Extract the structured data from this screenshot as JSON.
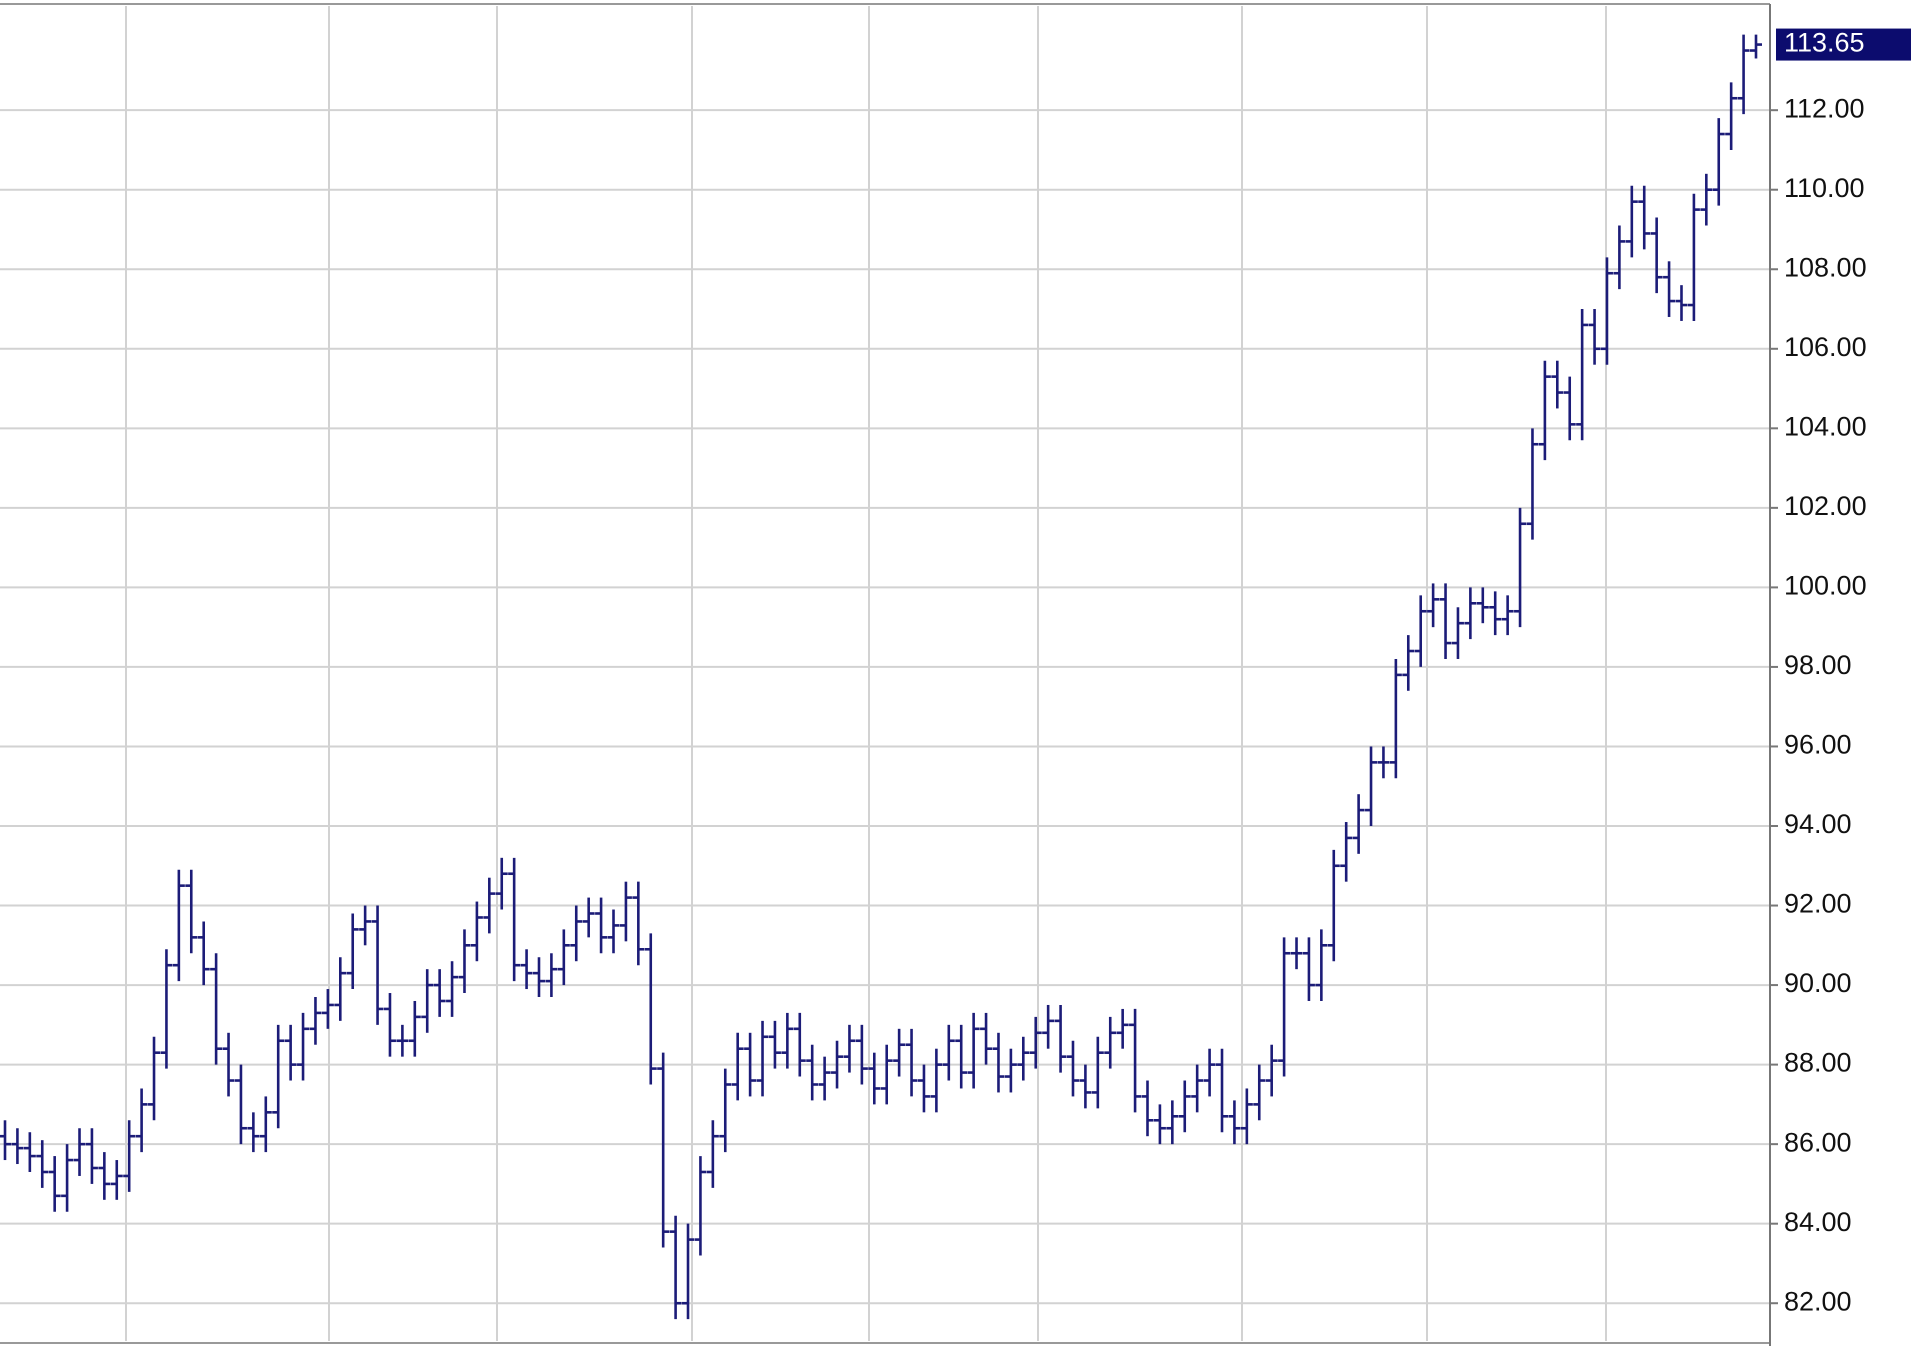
{
  "chart_data": {
    "type": "ohlc",
    "color": "#1c1c78",
    "grid": true,
    "ylim": [
      81.05,
      114.67
    ],
    "yticks": [
      {
        "value": 82,
        "label": "82.00"
      },
      {
        "value": 84,
        "label": "84.00"
      },
      {
        "value": 86,
        "label": "86.00"
      },
      {
        "value": 88,
        "label": "88.00"
      },
      {
        "value": 90,
        "label": "90.00"
      },
      {
        "value": 92,
        "label": "92.00"
      },
      {
        "value": 94,
        "label": "94.00"
      },
      {
        "value": 96,
        "label": "96.00"
      },
      {
        "value": 98,
        "label": "98.00"
      },
      {
        "value": 100,
        "label": "100.00"
      },
      {
        "value": 102,
        "label": "102.00"
      },
      {
        "value": 104,
        "label": "104.00"
      },
      {
        "value": 106,
        "label": "106.00"
      },
      {
        "value": 108,
        "label": "108.00"
      },
      {
        "value": 110,
        "label": "110.00"
      },
      {
        "value": 112,
        "label": "112.00"
      }
    ],
    "last_price": {
      "value": 113.65,
      "label": "113.65"
    },
    "open": [
      86.2,
      86.0,
      85.9,
      85.7,
      85.3,
      84.7,
      85.6,
      86.0,
      85.4,
      85.0,
      85.2,
      86.2,
      87.0,
      88.3,
      90.5,
      92.5,
      91.2,
      90.4,
      88.4,
      87.6,
      86.4,
      86.2,
      86.8,
      88.6,
      88.0,
      88.9,
      89.3,
      89.5,
      90.3,
      91.4,
      91.6,
      89.4,
      88.6,
      88.6,
      89.2,
      90.0,
      89.6,
      90.2,
      91.0,
      91.7,
      92.3,
      92.8,
      90.5,
      90.3,
      90.1,
      90.4,
      91.0,
      91.6,
      91.8,
      91.2,
      91.5,
      92.2,
      90.9,
      87.9,
      83.8,
      82.0,
      83.6,
      85.3,
      86.2,
      87.5,
      88.4,
      87.6,
      88.7,
      88.3,
      88.9,
      88.1,
      87.5,
      87.8,
      88.2,
      88.6,
      87.9,
      87.4,
      88.1,
      88.5,
      87.6,
      87.2,
      88.0,
      88.6,
      87.8,
      88.9,
      88.4,
      87.7,
      88.0,
      88.3,
      88.8,
      89.1,
      88.2,
      87.6,
      87.3,
      88.3,
      88.8,
      89.0,
      87.2,
      86.6,
      86.4,
      86.7,
      87.2,
      87.6,
      88.0,
      86.7,
      86.4,
      87.0,
      87.6,
      88.1,
      90.8,
      90.8,
      90.0,
      91.0,
      93.0,
      93.7,
      94.4,
      95.6,
      95.6,
      97.8,
      98.4,
      99.4,
      99.7,
      98.6,
      99.1,
      99.6,
      99.5,
      99.2,
      99.4,
      101.6,
      103.6,
      105.3,
      104.9,
      104.1,
      106.6,
      106.0,
      107.9,
      108.7,
      109.7,
      108.9,
      107.8,
      107.2,
      107.1,
      109.5,
      110.0,
      111.4,
      112.3,
      113.5
    ],
    "high": [
      86.6,
      86.4,
      86.3,
      86.1,
      85.7,
      86.0,
      86.4,
      86.4,
      85.8,
      85.6,
      86.6,
      87.4,
      88.7,
      90.9,
      92.9,
      92.9,
      91.6,
      90.8,
      88.8,
      88.0,
      86.8,
      87.2,
      89.0,
      89.0,
      89.3,
      89.7,
      89.9,
      90.7,
      91.8,
      92.0,
      92.0,
      89.8,
      89.0,
      89.6,
      90.4,
      90.4,
      90.6,
      91.4,
      92.1,
      92.7,
      93.2,
      93.2,
      90.9,
      90.7,
      90.8,
      91.4,
      92.0,
      92.2,
      92.2,
      91.9,
      92.6,
      92.6,
      91.3,
      88.3,
      84.2,
      84.0,
      85.7,
      86.6,
      87.9,
      88.8,
      88.8,
      89.1,
      89.1,
      89.3,
      89.3,
      88.5,
      88.2,
      88.6,
      89.0,
      89.0,
      88.3,
      88.5,
      88.9,
      88.9,
      88.0,
      88.4,
      89.0,
      89.0,
      89.3,
      89.3,
      88.8,
      88.4,
      88.7,
      89.2,
      89.5,
      89.5,
      88.6,
      88.0,
      88.7,
      89.2,
      89.4,
      89.4,
      87.6,
      87.0,
      87.1,
      87.6,
      88.0,
      88.4,
      88.4,
      87.1,
      87.4,
      88.0,
      88.5,
      91.2,
      91.2,
      91.2,
      91.4,
      93.4,
      94.1,
      94.8,
      96.0,
      96.0,
      98.2,
      98.8,
      99.8,
      100.1,
      100.1,
      99.5,
      100.0,
      100.0,
      99.9,
      99.8,
      102.0,
      104.0,
      105.7,
      105.7,
      105.3,
      107.0,
      107.0,
      108.3,
      109.1,
      110.1,
      110.1,
      109.3,
      108.2,
      107.6,
      109.9,
      110.4,
      111.8,
      112.7,
      113.9,
      113.9
    ],
    "low": [
      85.6,
      85.5,
      85.3,
      84.9,
      84.3,
      84.3,
      85.2,
      85.0,
      84.6,
      84.6,
      84.8,
      85.8,
      86.6,
      87.9,
      90.1,
      90.8,
      90.0,
      88.0,
      87.2,
      86.0,
      85.8,
      85.8,
      86.4,
      87.6,
      87.6,
      88.5,
      88.9,
      89.1,
      89.9,
      91.0,
      89.0,
      88.2,
      88.2,
      88.2,
      88.8,
      89.2,
      89.2,
      89.8,
      90.6,
      91.3,
      91.9,
      90.1,
      89.9,
      89.7,
      89.7,
      90.0,
      90.6,
      91.2,
      90.8,
      90.8,
      91.1,
      90.5,
      87.5,
      83.4,
      81.6,
      81.6,
      83.2,
      84.9,
      85.8,
      87.1,
      87.2,
      87.2,
      87.9,
      87.9,
      87.7,
      87.1,
      87.1,
      87.4,
      87.8,
      87.5,
      87.0,
      87.0,
      87.7,
      87.2,
      86.8,
      86.8,
      87.6,
      87.4,
      87.4,
      88.0,
      87.3,
      87.3,
      87.6,
      87.9,
      88.4,
      87.8,
      87.2,
      86.9,
      86.9,
      87.9,
      88.4,
      86.8,
      86.2,
      86.0,
      86.0,
      86.3,
      86.8,
      87.2,
      86.3,
      86.0,
      86.0,
      86.6,
      87.2,
      87.7,
      90.4,
      89.6,
      89.6,
      90.6,
      92.6,
      93.3,
      94.0,
      95.2,
      95.2,
      97.4,
      98.0,
      99.0,
      98.2,
      98.2,
      98.7,
      99.1,
      98.8,
      98.8,
      99.0,
      101.2,
      103.2,
      104.5,
      103.7,
      103.7,
      105.6,
      105.6,
      107.5,
      108.3,
      108.5,
      107.4,
      106.8,
      106.7,
      106.7,
      109.1,
      109.6,
      111.0,
      111.9,
      113.3
    ],
    "close": [
      86.0,
      85.9,
      85.7,
      85.3,
      84.7,
      85.6,
      86.0,
      85.4,
      85.0,
      85.2,
      86.2,
      87.0,
      88.3,
      90.5,
      92.5,
      91.2,
      90.4,
      88.4,
      87.6,
      86.4,
      86.2,
      86.8,
      88.6,
      88.0,
      88.9,
      89.3,
      89.5,
      90.3,
      91.4,
      91.6,
      89.4,
      88.6,
      88.6,
      89.2,
      90.0,
      89.6,
      90.2,
      91.0,
      91.7,
      92.3,
      92.8,
      90.5,
      90.3,
      90.1,
      90.4,
      91.0,
      91.6,
      91.8,
      91.2,
      91.5,
      92.2,
      90.9,
      87.9,
      83.8,
      82.0,
      83.6,
      85.3,
      86.2,
      87.5,
      88.4,
      87.6,
      88.7,
      88.3,
      88.9,
      88.1,
      87.5,
      87.8,
      88.2,
      88.6,
      87.9,
      87.4,
      88.1,
      88.5,
      87.6,
      87.2,
      88.0,
      88.6,
      87.8,
      88.9,
      88.4,
      87.7,
      88.0,
      88.3,
      88.8,
      89.1,
      88.2,
      87.6,
      87.3,
      88.3,
      88.8,
      89.0,
      87.2,
      86.6,
      86.4,
      86.7,
      87.2,
      87.6,
      88.0,
      86.7,
      86.4,
      87.0,
      87.6,
      88.1,
      90.8,
      90.8,
      90.0,
      91.0,
      93.0,
      93.7,
      94.4,
      95.6,
      95.6,
      97.8,
      98.4,
      99.4,
      99.7,
      98.6,
      99.1,
      99.6,
      99.5,
      99.2,
      99.4,
      101.6,
      103.6,
      105.3,
      104.9,
      104.1,
      106.6,
      106.0,
      107.9,
      108.7,
      109.7,
      108.9,
      107.8,
      107.2,
      107.1,
      109.5,
      110.0,
      111.4,
      112.3,
      113.5,
      113.65
    ]
  }
}
